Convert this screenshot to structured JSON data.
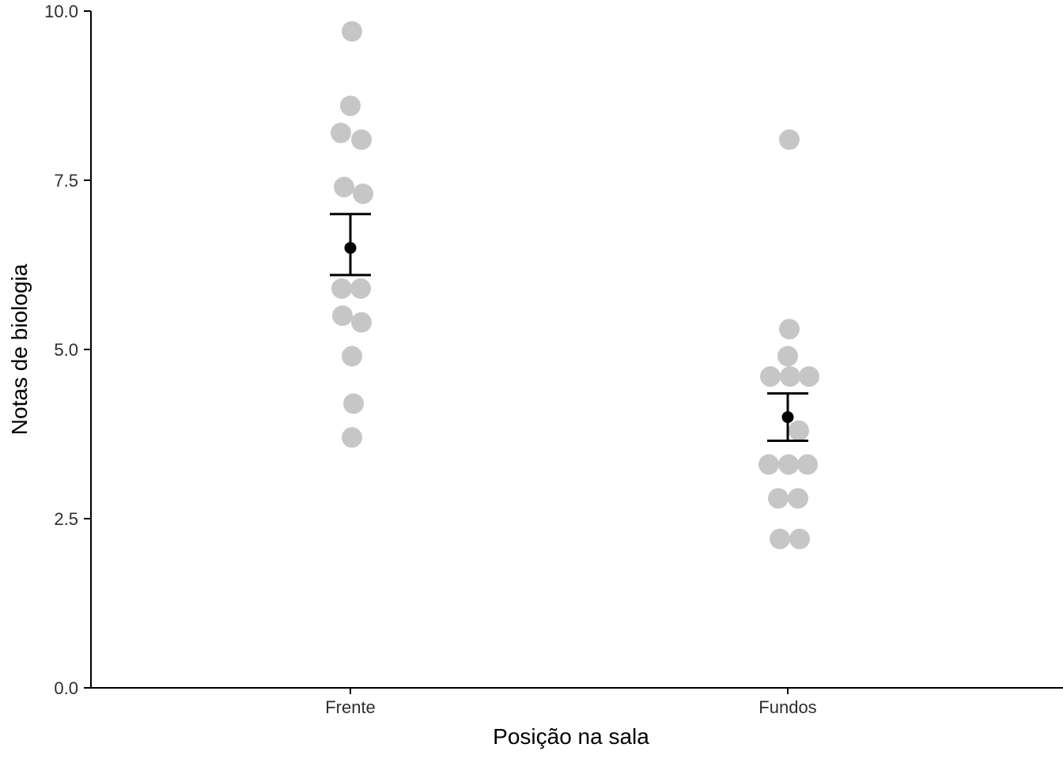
{
  "chart_data": {
    "type": "scatter",
    "variant": "jittered-strip-plot-with-mean-and-errorbars",
    "title": "",
    "xlabel": "Posição na sala",
    "ylabel": "Notas de biologia",
    "ylim": [
      0,
      10
    ],
    "yticks": [
      0.0,
      2.5,
      5.0,
      7.5,
      10.0
    ],
    "ytick_labels": [
      "0.0",
      "2.5",
      "5.0",
      "7.5",
      "10.0"
    ],
    "categories": [
      "Frente",
      "Fundos"
    ],
    "grid": false,
    "legend": false,
    "point_color": "#c6c6c6",
    "mean_color": "#000000",
    "axis_color": "#000000",
    "background": "#ffffff",
    "groups": [
      {
        "label": "Frente",
        "points": [
          {
            "y": 9.7,
            "dx": 2
          },
          {
            "y": 8.6,
            "dx": 0
          },
          {
            "y": 8.2,
            "dx": -12
          },
          {
            "y": 8.1,
            "dx": 14
          },
          {
            "y": 7.4,
            "dx": -8
          },
          {
            "y": 7.3,
            "dx": 16
          },
          {
            "y": 5.9,
            "dx": -11
          },
          {
            "y": 5.9,
            "dx": 13
          },
          {
            "y": 5.5,
            "dx": -10
          },
          {
            "y": 5.4,
            "dx": 14
          },
          {
            "y": 4.9,
            "dx": 2
          },
          {
            "y": 4.2,
            "dx": 4
          },
          {
            "y": 3.7,
            "dx": 2
          }
        ],
        "mean": 6.5,
        "ci_low": 6.1,
        "ci_high": 7.0
      },
      {
        "label": "Fundos",
        "points": [
          {
            "y": 8.1,
            "dx": 2
          },
          {
            "y": 5.3,
            "dx": 2
          },
          {
            "y": 4.9,
            "dx": 0
          },
          {
            "y": 4.6,
            "dx": -22
          },
          {
            "y": 4.6,
            "dx": 3
          },
          {
            "y": 4.6,
            "dx": 27
          },
          {
            "y": 3.8,
            "dx": 14
          },
          {
            "y": 3.3,
            "dx": -24
          },
          {
            "y": 3.3,
            "dx": 1
          },
          {
            "y": 3.3,
            "dx": 25
          },
          {
            "y": 2.8,
            "dx": -12
          },
          {
            "y": 2.8,
            "dx": 13
          },
          {
            "y": 2.2,
            "dx": -10
          },
          {
            "y": 2.2,
            "dx": 15
          }
        ],
        "mean": 4.0,
        "ci_low": 3.65,
        "ci_high": 4.35
      }
    ]
  }
}
